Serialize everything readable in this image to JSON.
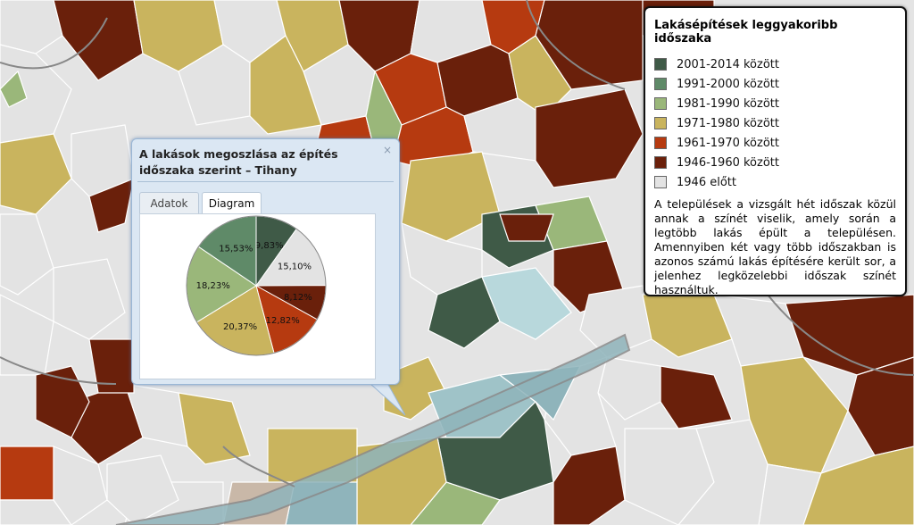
{
  "legend": {
    "title": "Lakásépítések leggyakoribb időszaka",
    "items": [
      {
        "label": "2001-2014 között",
        "color": "#3f5a47"
      },
      {
        "label": "1991-2000 között",
        "color": "#5f8a68"
      },
      {
        "label": "1981-1990 között",
        "color": "#9ab77a"
      },
      {
        "label": "1971-1980 között",
        "color": "#c9b45e"
      },
      {
        "label": "1961-1970 között",
        "color": "#b63a10"
      },
      {
        "label": "1946-1960 között",
        "color": "#6a200b"
      },
      {
        "label": "1946 előtt",
        "color": "#e3e3e3"
      }
    ],
    "description": "A települések a vizsgált hét időszak közül annak a színét viselik, amely során a legtöbb lakás épült a településen. Amennyiben két vagy több időszakban is azonos számú lakás építésére került sor, a jelenhez legközelebbi időszak színét használtuk."
  },
  "popup": {
    "title": "A lakások megoszlása az építés időszaka szerint – Tihany",
    "close_icon": "×",
    "tabs": [
      {
        "label": "Adatok",
        "active": false
      },
      {
        "label": "Diagram",
        "active": true
      }
    ]
  },
  "chart_data": {
    "type": "pie",
    "slices": [
      {
        "category": "2001-2014 között",
        "value": 9.83,
        "label": "9,83%",
        "color": "#3f5a47"
      },
      {
        "category": "1946 előtt",
        "value": 15.1,
        "label": "15,10%",
        "color": "#e3e3e3"
      },
      {
        "category": "1946-1960 között",
        "value": 8.12,
        "label": "8,12%",
        "color": "#6a200b"
      },
      {
        "category": "1961-1970 között",
        "value": 12.82,
        "label": "12,82%",
        "color": "#b63a10"
      },
      {
        "category": "1971-1980 között",
        "value": 20.37,
        "label": "20,37%",
        "color": "#c9b45e"
      },
      {
        "category": "1981-1990 között",
        "value": 18.23,
        "label": "18,23%",
        "color": "#9ab77a"
      },
      {
        "category": "1991-2000 között",
        "value": 15.53,
        "label": "15,53%",
        "color": "#5f8a68"
      }
    ]
  }
}
